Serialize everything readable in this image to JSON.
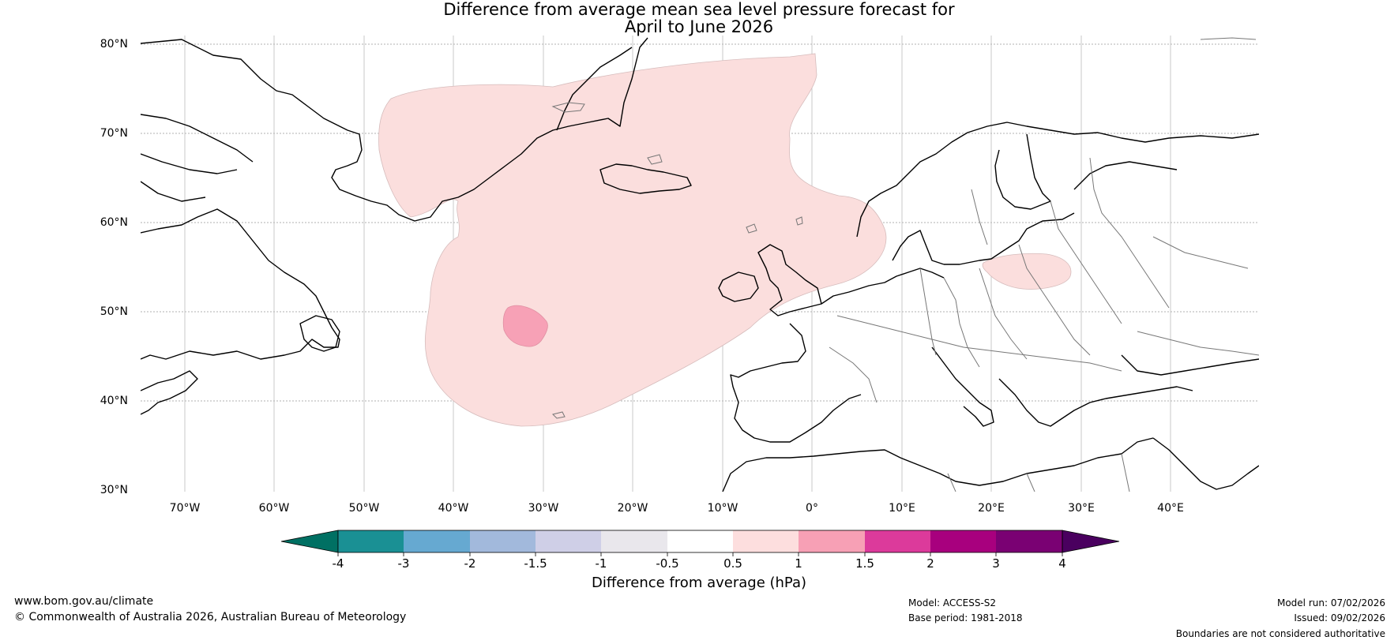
{
  "title": {
    "line1": "Difference from average mean sea level pressure forecast for",
    "line2": "April to June 2026"
  },
  "map": {
    "lat_labels": [
      "80°N",
      "70°N",
      "60°N",
      "50°N",
      "40°N",
      "30°N"
    ],
    "lon_labels": [
      "70°W",
      "60°W",
      "50°W",
      "40°W",
      "30°W",
      "20°W",
      "10°W",
      "0°",
      "10°E",
      "20°E",
      "30°E",
      "40°E"
    ],
    "lat_range": [
      30,
      80
    ],
    "lon_range": [
      -75,
      50
    ],
    "anomaly_regions": [
      {
        "name": "North Atlantic positive anomaly",
        "range": "0.5 to 1",
        "color": "#fbdedd"
      },
      {
        "name": "Central Atlantic core",
        "range": "1 to 1.5",
        "color": "#f7a1b6"
      },
      {
        "name": "Eastern Europe positive anomaly",
        "range": "0.5 to 1",
        "color": "#fbdedd"
      }
    ]
  },
  "colorbar": {
    "title": "Difference from average (hPa)",
    "ticks": [
      "-4",
      "-3",
      "-2",
      "-1.5",
      "-1",
      "-0.5",
      "0.5",
      "1",
      "1.5",
      "2",
      "3",
      "4"
    ],
    "low_extend_color": "#007063",
    "high_extend_color": "#4a005f",
    "colors": [
      "#1a9094",
      "#66a9d1",
      "#a2b9dc",
      "#cfcfe7",
      "#e9e7ec",
      "#ffffff",
      "#fddede",
      "#f7a0b5",
      "#dc3a9b",
      "#a8007e",
      "#7a0173"
    ]
  },
  "footer": {
    "website": "www.bom.gov.au/climate",
    "copyright": "© Commonwealth of Australia 2026, Australian Bureau of Meteorology",
    "model": "Model: ACCESS-S2",
    "base_period": "Base period: 1981-2018",
    "model_run": "Model run: 07/02/2026",
    "issued": "Issued: 09/02/2026",
    "disclaimer": "Boundaries are not considered authoritative"
  }
}
